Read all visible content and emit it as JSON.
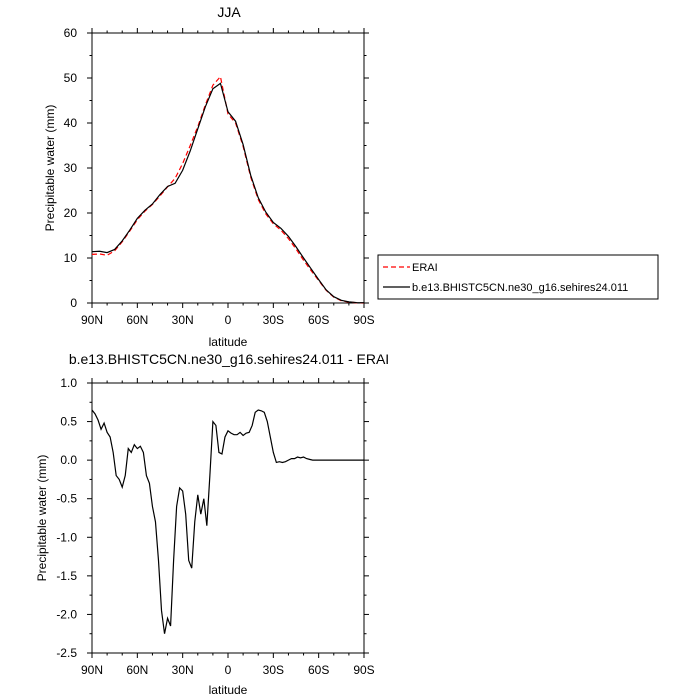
{
  "chart_data": [
    {
      "type": "line",
      "title": "JJA",
      "xlabel": "latitude",
      "ylabel": "Precipitable water (mm)",
      "xlim": [
        90,
        -90
      ],
      "ylim": [
        0,
        60
      ],
      "xticks": [
        90,
        60,
        30,
        0,
        -30,
        -60,
        -90
      ],
      "xtick_labels": [
        "90N",
        "60N",
        "30N",
        "0",
        "30S",
        "60S",
        "90S"
      ],
      "yticks": [
        0,
        10,
        20,
        30,
        40,
        50,
        60
      ],
      "ytick_labels": [
        "0",
        "10",
        "20",
        "30",
        "40",
        "50",
        "60"
      ],
      "grid": false,
      "legend_position": "right",
      "series": [
        {
          "name": "ERAI",
          "color": "#ff0000",
          "dash": true,
          "x": [
            90,
            85,
            80,
            75,
            70,
            65,
            60,
            55,
            50,
            45,
            40,
            35,
            30,
            25,
            20,
            15,
            10,
            5,
            0,
            -5,
            -10,
            -15,
            -20,
            -25,
            -30,
            -35,
            -40,
            -45,
            -50,
            -55,
            -60,
            -65,
            -70,
            -75,
            -80,
            -85,
            -90
          ],
          "y": [
            10.8,
            10.9,
            10.6,
            11.6,
            13.6,
            16.0,
            18.5,
            20.4,
            21.9,
            23.8,
            25.8,
            27.7,
            31.0,
            35.0,
            39.2,
            44.0,
            48.4,
            50.3,
            42.0,
            40.0,
            34.8,
            28.0,
            23.0,
            19.8,
            17.6,
            16.2,
            14.3,
            12.0,
            9.5,
            7.2,
            5.0,
            2.8,
            1.3,
            0.5,
            0.2,
            0.05,
            0.0
          ]
        },
        {
          "name": "b.e13.BHISTC5CN.ne30_g16.sehires24.011",
          "color": "#000000",
          "dash": false,
          "x": [
            90,
            85,
            80,
            75,
            70,
            65,
            60,
            55,
            50,
            45,
            40,
            35,
            30,
            25,
            20,
            15,
            10,
            5,
            0,
            -5,
            -10,
            -15,
            -20,
            -25,
            -30,
            -35,
            -40,
            -45,
            -50,
            -55,
            -60,
            -65,
            -70,
            -75,
            -80,
            -85,
            -90
          ],
          "y": [
            11.4,
            11.5,
            11.2,
            11.9,
            13.8,
            16.2,
            18.8,
            20.6,
            22.0,
            24.1,
            25.9,
            26.6,
            29.5,
            33.8,
            38.7,
            43.6,
            47.6,
            48.8,
            42.5,
            40.4,
            35.2,
            28.4,
            23.4,
            20.2,
            17.9,
            16.6,
            14.8,
            12.5,
            10.0,
            7.6,
            5.2,
            2.9,
            1.4,
            0.6,
            0.25,
            0.1,
            0.05
          ]
        }
      ]
    },
    {
      "type": "line",
      "title": "b.e13.BHISTC5CN.ne30_g16.sehires24.011 - ERAI",
      "xlabel": "latitude",
      "ylabel": "Precipitable water (mm)",
      "xlim": [
        90,
        -90
      ],
      "ylim": [
        -2.5,
        1.0
      ],
      "xticks": [
        90,
        60,
        30,
        0,
        -30,
        -60,
        -90
      ],
      "xtick_labels": [
        "90N",
        "60N",
        "30N",
        "0",
        "30S",
        "60S",
        "90S"
      ],
      "yticks": [
        -2.5,
        -2.0,
        -1.5,
        -1.0,
        -0.5,
        0.0,
        0.5,
        1.0
      ],
      "ytick_labels": [
        "-2.5",
        "-2.0",
        "-1.5",
        "-1.0",
        "-0.5",
        "0.0",
        "0.5",
        "1.0"
      ],
      "grid": false,
      "series": [
        {
          "color": "#000000",
          "dash": false,
          "x": [
            90,
            88,
            86,
            84,
            82,
            80,
            78,
            76,
            74,
            72,
            70,
            68,
            66,
            64,
            62,
            60,
            58,
            56,
            54,
            52,
            50,
            48,
            46,
            44,
            42,
            40,
            38,
            36,
            34,
            32,
            30,
            28,
            26,
            24,
            22,
            20,
            18,
            16,
            14,
            12,
            10,
            8,
            6,
            4,
            2,
            0,
            -2,
            -4,
            -6,
            -8,
            -10,
            -12,
            -14,
            -16,
            -18,
            -20,
            -22,
            -24,
            -26,
            -28,
            -30,
            -32,
            -34,
            -36,
            -38,
            -40,
            -42,
            -44,
            -46,
            -48,
            -50,
            -52,
            -54,
            -56,
            -58,
            -60,
            -62,
            -64,
            -66,
            -68,
            -70,
            -72,
            -74,
            -76,
            -78,
            -80,
            -82,
            -84,
            -86,
            -88,
            -90
          ],
          "y": [
            0.65,
            0.6,
            0.52,
            0.4,
            0.48,
            0.36,
            0.3,
            0.1,
            -0.2,
            -0.25,
            -0.35,
            -0.2,
            0.15,
            0.1,
            0.2,
            0.15,
            0.18,
            0.1,
            -0.2,
            -0.3,
            -0.6,
            -0.8,
            -1.3,
            -1.95,
            -2.25,
            -2.05,
            -2.15,
            -1.3,
            -0.6,
            -0.36,
            -0.4,
            -0.7,
            -1.3,
            -1.4,
            -0.8,
            -0.45,
            -0.7,
            -0.5,
            -0.85,
            -0.2,
            0.5,
            0.45,
            0.1,
            0.08,
            0.3,
            0.38,
            0.35,
            0.33,
            0.33,
            0.36,
            0.32,
            0.35,
            0.36,
            0.45,
            0.62,
            0.65,
            0.64,
            0.62,
            0.5,
            0.3,
            0.1,
            -0.03,
            -0.02,
            -0.03,
            -0.02,
            0.0,
            0.02,
            0.02,
            0.04,
            0.03,
            0.04,
            0.02,
            0.01,
            0.0,
            0.0,
            0.0,
            0.0,
            0.0,
            0.0,
            0.0,
            0.0,
            0.0,
            0.0,
            0.0,
            0.0,
            0.0,
            0.0,
            0.0,
            0.0,
            0.0,
            0.0
          ]
        }
      ]
    }
  ]
}
